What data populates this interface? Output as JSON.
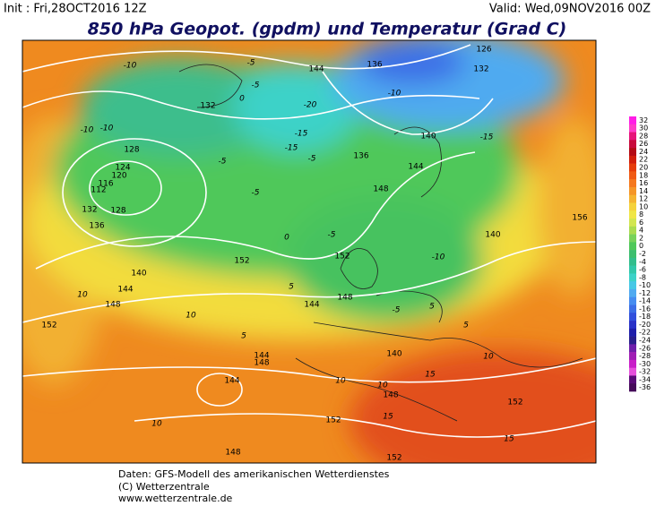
{
  "header": {
    "init": "Init : Fri,28OCT2016 12Z",
    "valid": "Valid: Wed,09NOV2016 00Z",
    "title": "850 hPa Geopot. (gpdm) und Temperatur (Grad C)"
  },
  "map": {
    "contour_labels": [
      "144",
      "136",
      "126",
      "132",
      "132",
      "136",
      "140",
      "144",
      "148",
      "140",
      "152",
      "148",
      "144",
      "152",
      "148",
      "144",
      "140",
      "136",
      "132",
      "128",
      "124",
      "120",
      "116",
      "112",
      "140",
      "144",
      "148",
      "152",
      "148",
      "152",
      "156",
      "128",
      "148",
      "144",
      "152",
      "152"
    ],
    "temperature_labels": [
      "-10",
      "-5",
      "0",
      "-10",
      "-15",
      "-20",
      "-5",
      "-10",
      "-15",
      "-5",
      "-10",
      "-5",
      "5",
      "0",
      "-5",
      "5",
      "10",
      "5",
      "10",
      "15",
      "10",
      "15",
      "10",
      "15",
      "10",
      "5",
      "10",
      "-5",
      "-10",
      "-5",
      "-15"
    ]
  },
  "legend": {
    "labels": [
      32,
      30,
      28,
      26,
      24,
      22,
      20,
      18,
      16,
      14,
      12,
      10,
      8,
      6,
      4,
      2,
      0,
      -2,
      -4,
      -6,
      -8,
      -10,
      -12,
      -14,
      -16,
      -18,
      -20,
      -22,
      -24,
      -26,
      -28,
      -30,
      -32,
      -34,
      -36
    ],
    "colors": [
      "#ff1ee6",
      "#ff3cc8",
      "#e6147a",
      "#c80a3c",
      "#b40a14",
      "#d21e0a",
      "#e63c0a",
      "#f05a14",
      "#f5781e",
      "#f59628",
      "#f5b432",
      "#f5d23c",
      "#f0e646",
      "#d2e650",
      "#aadc50",
      "#78d25a",
      "#50c85a",
      "#3cbe6e",
      "#32be8c",
      "#32c8aa",
      "#3cd2c8",
      "#46c8e6",
      "#50aaf0",
      "#468cf0",
      "#3c6ee6",
      "#3250dc",
      "#2832c8",
      "#1e1eaa",
      "#281e8c",
      "#6e1eaa",
      "#a01eb4",
      "#c81ec8",
      "#e650dc",
      "#5a0a78",
      "#460a5a"
    ]
  },
  "footer": {
    "line1": "Daten: GFS-Modell des amerikanischen Wetterdienstes",
    "line2": "(C) Wetterzentrale",
    "line3": "www.wetterzentrale.de"
  }
}
